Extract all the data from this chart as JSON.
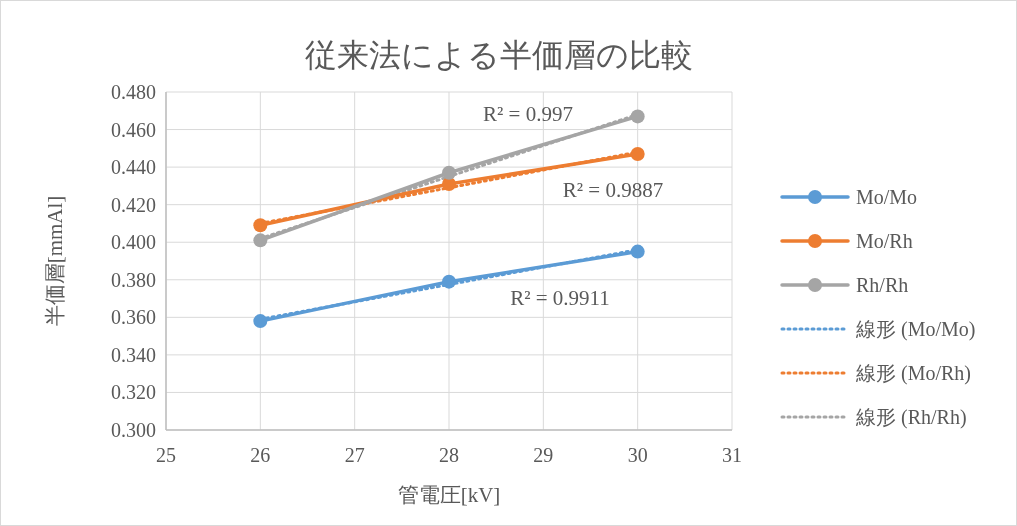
{
  "chart_data": {
    "type": "line",
    "title": "従来法による半価層の比較",
    "xlabel": "管電圧[kV]",
    "ylabel": "半価層[mmAl]",
    "xlim": [
      25,
      31
    ],
    "xticks": [
      25,
      26,
      27,
      28,
      29,
      30,
      31
    ],
    "ylim": [
      0.3,
      0.48
    ],
    "yticks": [
      {
        "value": 0.3,
        "label": "0.300"
      },
      {
        "value": 0.32,
        "label": "0.320"
      },
      {
        "value": 0.34,
        "label": "0.340"
      },
      {
        "value": 0.36,
        "label": "0.360"
      },
      {
        "value": 0.38,
        "label": "0.380"
      },
      {
        "value": 0.4,
        "label": "0.400"
      },
      {
        "value": 0.42,
        "label": "0.420"
      },
      {
        "value": 0.44,
        "label": "0.440"
      },
      {
        "value": 0.46,
        "label": "0.460"
      },
      {
        "value": 0.48,
        "label": "0.480"
      }
    ],
    "grid": true,
    "legend": "right",
    "series": [
      {
        "name": "Mo/Mo",
        "color": "#5b9bd5",
        "x": [
          26,
          28,
          30
        ],
        "values": [
          0.358,
          0.379,
          0.395
        ],
        "marker": "circle",
        "line_style": "solid"
      },
      {
        "name": "Mo/Rh",
        "color": "#ed7d31",
        "x": [
          26,
          28,
          30
        ],
        "values": [
          0.409,
          0.431,
          0.447
        ],
        "marker": "circle",
        "line_style": "solid"
      },
      {
        "name": "Rh/Rh",
        "color": "#a5a5a5",
        "x": [
          26,
          28,
          30
        ],
        "values": [
          0.401,
          0.437,
          0.467
        ],
        "marker": "circle",
        "line_style": "solid"
      },
      {
        "name": "線形 (Mo/Mo)",
        "type": "line",
        "color": "#5b9bd5",
        "x": [
          26,
          30
        ],
        "values": [
          0.359,
          0.396
        ],
        "marker": "none",
        "line_style": "dotted"
      },
      {
        "name": "線形 (Mo/Rh)",
        "type": "line",
        "color": "#ed7d31",
        "x": [
          26,
          30
        ],
        "values": [
          0.41,
          0.448
        ],
        "marker": "none",
        "line_style": "dotted"
      },
      {
        "name": "線形 (Rh/Rh)",
        "type": "line",
        "color": "#a5a5a5",
        "x": [
          26,
          30
        ],
        "values": [
          0.402,
          0.468
        ],
        "marker": "none",
        "line_style": "dotted"
      }
    ],
    "annotations": [
      "R² = 0.997",
      "R² = 0.9887",
      "R² = 0.9911"
    ]
  }
}
